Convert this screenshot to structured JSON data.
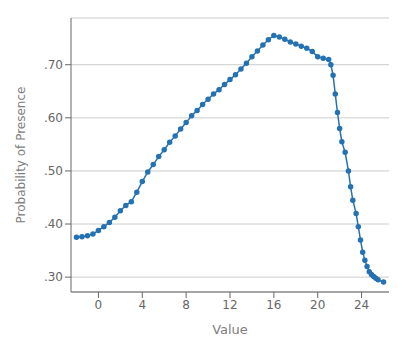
{
  "chart_data": {
    "type": "line",
    "title": "",
    "xlabel": "Value",
    "ylabel": "Probability of Presence",
    "color": "#2472B3",
    "marker": "circle",
    "grid": "y",
    "xlim": [
      -2.5,
      26.5
    ],
    "ylim": [
      0.272,
      0.788
    ],
    "xticks": [
      0,
      4,
      8,
      12,
      16,
      20,
      24
    ],
    "yticks": [
      {
        "value": 0.3,
        "label": ".30"
      },
      {
        "value": 0.4,
        "label": ".40"
      },
      {
        "value": 0.5,
        "label": ".50"
      },
      {
        "value": 0.6,
        "label": ".60"
      },
      {
        "value": 0.7,
        "label": ".70"
      }
    ],
    "x": [
      -2,
      -1.5,
      -1,
      -0.5,
      0,
      0.5,
      1,
      1.5,
      2,
      2.5,
      3,
      3.5,
      4,
      4.5,
      5,
      5.5,
      6,
      6.5,
      7,
      7.5,
      8,
      8.5,
      9,
      9.5,
      10,
      10.5,
      11,
      11.5,
      12,
      12.5,
      13,
      13.5,
      14,
      14.5,
      15,
      15.5,
      16,
      16.5,
      17,
      17.5,
      18,
      18.5,
      19,
      19.5,
      20,
      20.5,
      21,
      21.2,
      21.4,
      21.6,
      21.8,
      22.0,
      22.2,
      22.5,
      22.8,
      23.0,
      23.2,
      23.5,
      23.7,
      23.9,
      24.1,
      24.3,
      24.5,
      24.7,
      24.9,
      25.1,
      25.3,
      25.5,
      26.0
    ],
    "values": [
      0.375,
      0.376,
      0.378,
      0.381,
      0.388,
      0.395,
      0.403,
      0.413,
      0.425,
      0.435,
      0.442,
      0.46,
      0.48,
      0.498,
      0.512,
      0.527,
      0.54,
      0.554,
      0.566,
      0.579,
      0.591,
      0.604,
      0.614,
      0.625,
      0.635,
      0.645,
      0.653,
      0.663,
      0.672,
      0.681,
      0.692,
      0.703,
      0.715,
      0.726,
      0.737,
      0.747,
      0.755,
      0.752,
      0.748,
      0.743,
      0.739,
      0.735,
      0.731,
      0.725,
      0.715,
      0.712,
      0.71,
      0.7,
      0.68,
      0.645,
      0.61,
      0.58,
      0.555,
      0.535,
      0.5,
      0.47,
      0.445,
      0.42,
      0.395,
      0.37,
      0.347,
      0.332,
      0.32,
      0.31,
      0.305,
      0.301,
      0.298,
      0.295,
      0.291
    ]
  }
}
